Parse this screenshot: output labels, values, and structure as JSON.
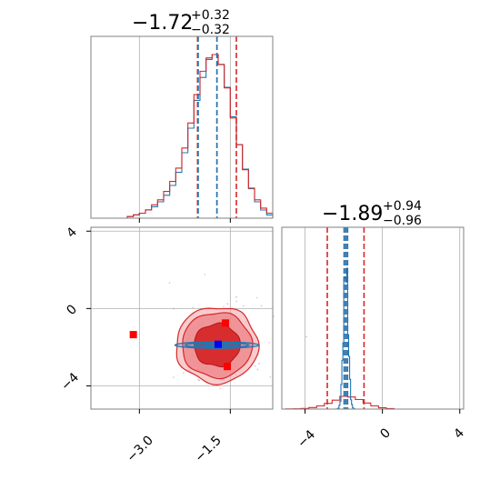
{
  "chart_data": [
    {
      "type": "histogram",
      "panel": "marginal-x",
      "title": {
        "median": "−1.72",
        "upper": "+0.32",
        "lower": "−0.32"
      },
      "xlim": [
        -3.8,
        -0.8
      ],
      "grid": true,
      "bin_centers": [
        -3.15,
        -3.05,
        -2.95,
        -2.85,
        -2.75,
        -2.65,
        -2.55,
        -2.45,
        -2.35,
        -2.25,
        -2.15,
        -2.05,
        -1.95,
        -1.85,
        -1.75,
        -1.65,
        -1.55,
        -1.45,
        -1.35,
        -1.25,
        -1.15,
        -1.05,
        -0.95,
        -0.85
      ],
      "series": [
        {
          "color": "#1f77b4",
          "values": [
            1,
            2,
            3,
            5,
            7,
            10,
            14,
            20,
            28,
            40,
            55,
            72,
            86,
            97,
            100,
            94,
            80,
            62,
            45,
            30,
            18,
            10,
            5,
            2
          ]
        },
        {
          "color": "#d62728",
          "values": [
            1,
            2,
            3,
            5,
            8,
            11,
            16,
            22,
            30,
            42,
            57,
            74,
            88,
            96,
            98,
            92,
            78,
            60,
            44,
            29,
            18,
            11,
            6,
            3
          ]
        }
      ],
      "quantile_lines": [
        {
          "color": "#d62728",
          "x": [
            -2.04,
            -1.72,
            -1.4
          ]
        },
        {
          "color": "#1f77b4",
          "x": [
            -2.03,
            -1.72
          ]
        }
      ]
    },
    {
      "type": "histogram",
      "panel": "marginal-y",
      "title": {
        "median": "−1.89",
        "upper": "+0.94",
        "lower": "−0.96"
      },
      "xlim": [
        -5.2,
        4.2
      ],
      "xticks": [
        "−4",
        "0",
        "4"
      ],
      "grid": true,
      "bin_centers": [
        -4.8,
        -4.4,
        -4.0,
        -3.6,
        -3.2,
        -2.8,
        -2.4,
        -2.0,
        -1.6,
        -1.2,
        -0.8,
        -0.4,
        0.0,
        0.4
      ],
      "series": [
        {
          "color": "#d62728",
          "values": [
            1,
            2,
            5,
            12,
            25,
            45,
            70,
            100,
            95,
            75,
            48,
            25,
            10,
            4
          ]
        }
      ],
      "narrow_series": {
        "color": "#1f77b4",
        "center": -1.89,
        "spread": 0.12
      },
      "quantile_lines": [
        {
          "color": "#d62728",
          "x": [
            -2.85,
            -1.89,
            -0.95
          ]
        },
        {
          "color": "#1f77b4",
          "x": [
            -1.98,
            -1.89,
            -1.8
          ]
        }
      ]
    },
    {
      "type": "contour",
      "panel": "joint",
      "xlim": [
        -3.8,
        -0.8
      ],
      "ylim": [
        -5.2,
        4.2
      ],
      "xticks": [
        "−3.0",
        "−1.5"
      ],
      "yticks": [
        "−4",
        "0",
        "4"
      ],
      "grid": true,
      "red_density": {
        "center": [
          -1.72,
          -1.89
        ],
        "sigma": [
          0.33,
          0.96
        ],
        "color": "#d62728"
      },
      "blue_density": {
        "center": [
          -1.72,
          -1.89
        ],
        "sigma": [
          0.33,
          0.08
        ],
        "color": "#1f77b4"
      },
      "markers": [
        {
          "color": "#ff0000",
          "x": -3.1,
          "y": -1.35
        },
        {
          "color": "#ff0000",
          "x": -1.58,
          "y": -0.75
        },
        {
          "color": "#ff0000",
          "x": -1.55,
          "y": -3.0
        },
        {
          "color": "#0000ff",
          "x": -1.7,
          "y": -1.85
        }
      ]
    }
  ]
}
